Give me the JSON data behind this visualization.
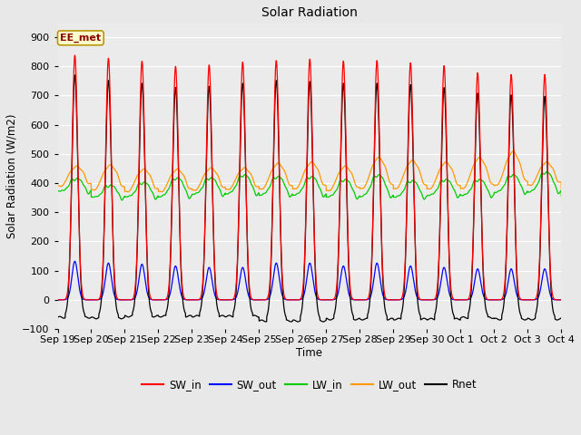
{
  "title": "Solar Radiation",
  "xlabel": "Time",
  "ylabel": "Solar Radiation (W/m2)",
  "ylim": [
    -100,
    950
  ],
  "annotation_text": "EE_met",
  "annotation_bg": "#ffffcc",
  "annotation_border": "#b8960c",
  "fig_bg": "#e8e8e8",
  "plot_bg": "#ebebeb",
  "grid_color": "#ffffff",
  "series": {
    "SW_in": {
      "color": "#ff0000",
      "lw": 0.9
    },
    "SW_out": {
      "color": "#0000ff",
      "lw": 0.9
    },
    "LW_in": {
      "color": "#00cc00",
      "lw": 0.9
    },
    "LW_out": {
      "color": "#ff9900",
      "lw": 0.9
    },
    "Rnet": {
      "color": "#000000",
      "lw": 0.9
    }
  },
  "tick_labels": [
    "Sep 19",
    "Sep 20",
    "Sep 21",
    "Sep 22",
    "Sep 23",
    "Sep 24",
    "Sep 25",
    "Sep 26",
    "Sep 27",
    "Sep 28",
    "Sep 29",
    "Sep 30",
    "Oct 1",
    "Oct 2",
    "Oct 3",
    "Oct 4"
  ],
  "n_days": 16,
  "SW_in_peaks": [
    838,
    828,
    818,
    800,
    805,
    815,
    820,
    825,
    818,
    820,
    812,
    802,
    778,
    772,
    772,
    0
  ],
  "SW_out_peaks": [
    132,
    126,
    122,
    116,
    111,
    111,
    126,
    126,
    116,
    126,
    116,
    111,
    106,
    106,
    106,
    0
  ],
  "LW_in_base": [
    360,
    340,
    340,
    338,
    348,
    348,
    344,
    344,
    338,
    338,
    338,
    344,
    344,
    354,
    354,
    354
  ],
  "LW_in_peak": [
    415,
    392,
    402,
    418,
    418,
    428,
    422,
    422,
    412,
    428,
    408,
    412,
    412,
    428,
    438,
    370
  ],
  "LW_out_base": [
    380,
    365,
    360,
    360,
    365,
    368,
    368,
    368,
    363,
    368,
    368,
    368,
    368,
    378,
    382,
    375
  ],
  "LW_out_peak": [
    458,
    462,
    448,
    448,
    452,
    452,
    468,
    472,
    458,
    488,
    478,
    472,
    488,
    508,
    472,
    385
  ],
  "Rnet_peaks": [
    770,
    752,
    742,
    728,
    732,
    742,
    752,
    748,
    742,
    742,
    737,
    727,
    708,
    702,
    697,
    0
  ],
  "Rnet_night": [
    -60,
    -62,
    -56,
    -56,
    -56,
    -56,
    -72,
    -72,
    -66,
    -66,
    -66,
    -66,
    -61,
    -66,
    -66,
    -61
  ]
}
